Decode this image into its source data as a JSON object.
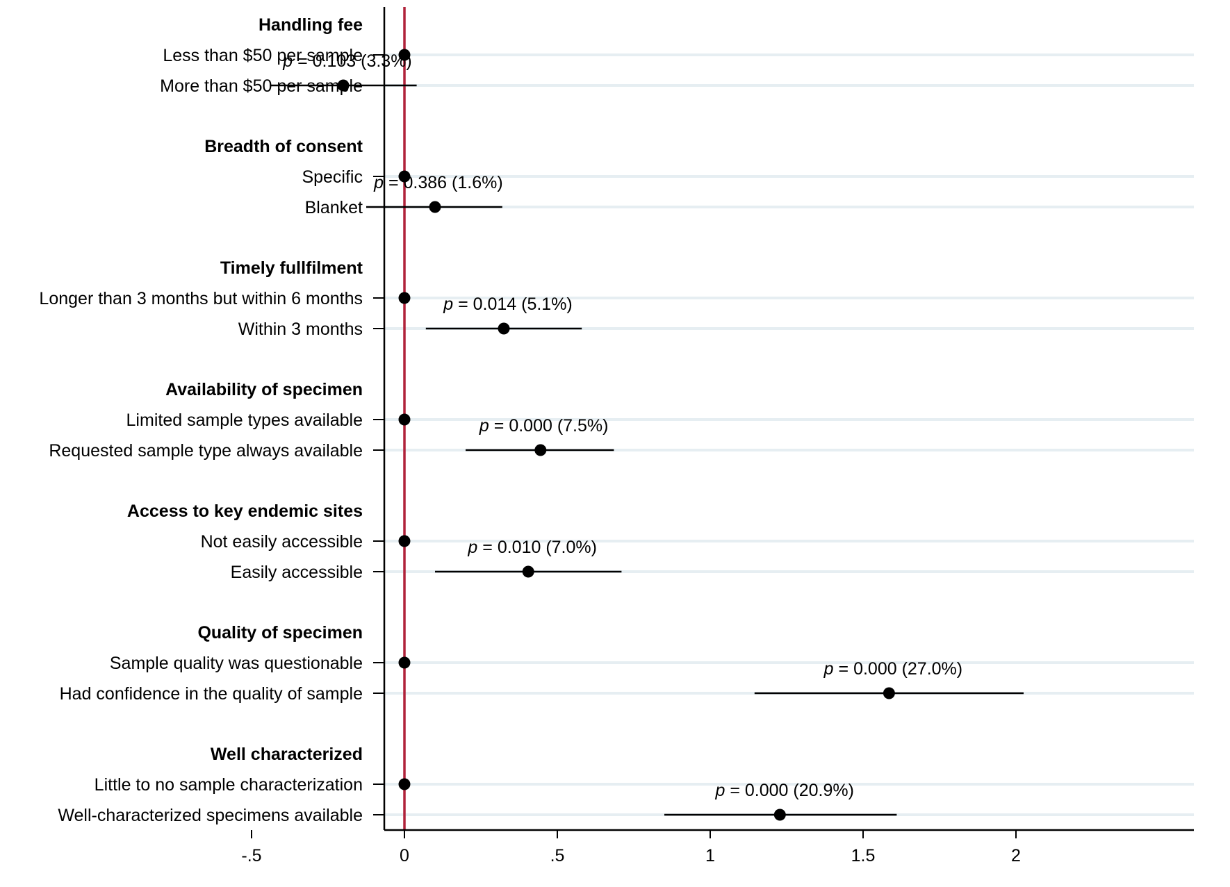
{
  "chart_data": {
    "type": "scatter",
    "subtype": "coefficient-plot",
    "title": "",
    "xlabel": "",
    "ylabel": "",
    "xlim": [
      -0.5,
      2.0
    ],
    "x_ticks": [
      {
        "value": -0.5,
        "label": "-.5"
      },
      {
        "value": 0,
        "label": "0"
      },
      {
        "value": 0.5,
        "label": ".5"
      },
      {
        "value": 1,
        "label": "1"
      },
      {
        "value": 1.5,
        "label": "1.5"
      },
      {
        "value": 2,
        "label": "2"
      }
    ],
    "reference_line": {
      "x": 0,
      "color": "#b0223a"
    },
    "grid": "horizontal",
    "colors": {
      "point": "#000000",
      "ci": "#000000",
      "grid": "#e6eef2",
      "axis": "#000000"
    },
    "groups": [
      {
        "name": "Handling fee",
        "levels": [
          {
            "label": "Less than $50 per sample",
            "estimate": 0,
            "ci": null
          },
          {
            "label": "More than $50 per sample",
            "estimate": -0.2,
            "ci": [
              -0.44,
              0.04
            ],
            "p_label": "p",
            "p_text": " = 0.103 (3.3%)"
          }
        ]
      },
      {
        "name": "Breadth of consent",
        "levels": [
          {
            "label": "Specific",
            "estimate": 0,
            "ci": null
          },
          {
            "label": "Blanket",
            "estimate": 0.1,
            "ci": [
              -0.125,
              0.32
            ],
            "p_label": "p",
            "p_text": " = 0.386 (1.6%)"
          }
        ]
      },
      {
        "name": "Timely fullfilment",
        "levels": [
          {
            "label": "Longer than 3 months but within 6 months",
            "estimate": 0,
            "ci": null
          },
          {
            "label": "Within 3 months",
            "estimate": 0.325,
            "ci": [
              0.07,
              0.58
            ],
            "p_label": "p",
            "p_text": " = 0.014 (5.1%)"
          }
        ]
      },
      {
        "name": "Availability of specimen",
        "levels": [
          {
            "label": "Limited sample types available",
            "estimate": 0,
            "ci": null
          },
          {
            "label": "Requested sample type always available",
            "estimate": 0.445,
            "ci": [
              0.2,
              0.685
            ],
            "p_label": "p",
            "p_text": " = 0.000 (7.5%)"
          }
        ]
      },
      {
        "name": "Access to key endemic sites",
        "levels": [
          {
            "label": "Not easily accessible",
            "estimate": 0,
            "ci": null
          },
          {
            "label": "Easily accessible",
            "estimate": 0.405,
            "ci": [
              0.1,
              0.71
            ],
            "p_label": "p",
            "p_text": " = 0.010 (7.0%)"
          }
        ]
      },
      {
        "name": "Quality of specimen",
        "levels": [
          {
            "label": "Sample quality was questionable",
            "estimate": 0,
            "ci": null
          },
          {
            "label": "Had confidence in the quality of sample",
            "estimate": 1.585,
            "ci": [
              1.145,
              2.025
            ],
            "p_label": "p",
            "p_text": " = 0.000 (27.0%)"
          }
        ]
      },
      {
        "name": "Well characterized",
        "levels": [
          {
            "label": "Little to no sample characterization",
            "estimate": 0,
            "ci": null
          },
          {
            "label": "Well-characterized specimens available",
            "estimate": 1.228,
            "ci": [
              0.85,
              1.61
            ],
            "p_label": "p",
            "p_text": " = 0.000 (20.9%)"
          }
        ]
      }
    ]
  }
}
